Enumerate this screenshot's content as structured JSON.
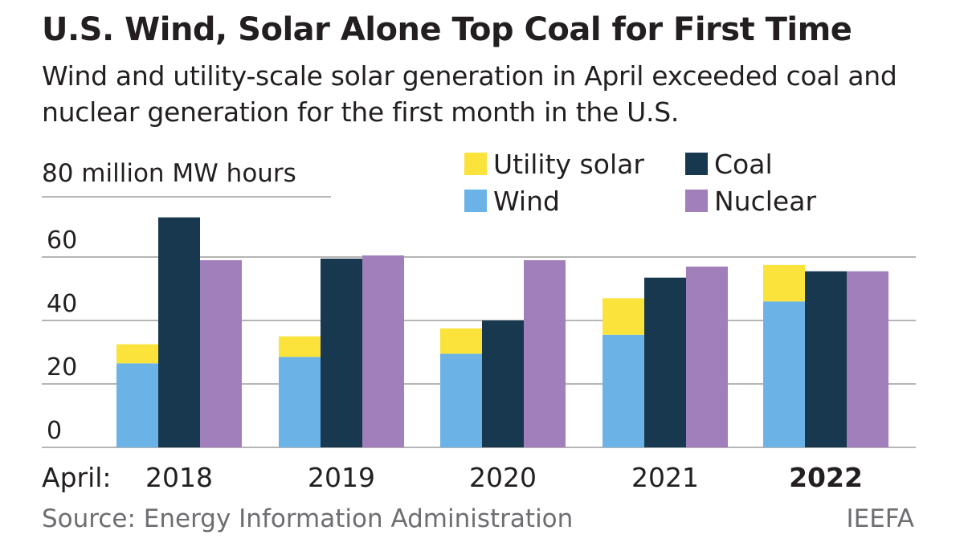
{
  "header": {
    "title": "U.S. Wind, Solar Alone Top Coal for First Time",
    "subtitle": "Wind and utility-scale solar generation in April exceeded coal and nuclear generation for the first month in the U.S."
  },
  "footer": {
    "source": "Source: Energy Information Administration",
    "credit": "IEEFA"
  },
  "colors": {
    "solar": "#fbe33b",
    "wind": "#6bb3e6",
    "coal": "#17384e",
    "nuclear": "#a07fba",
    "grid": "#b5b5b5"
  },
  "chart_data": {
    "type": "bar",
    "stacked_first_group": true,
    "x_prefix": "April:",
    "categories": [
      "2018",
      "2019",
      "2020",
      "2021",
      "2022"
    ],
    "highlight_category": "2022",
    "y_unit_label": "80 million MW hours",
    "yticks": [
      0,
      20,
      40,
      60
    ],
    "ylim": [
      0,
      80
    ],
    "grid": true,
    "legend_position": "top-right",
    "series": [
      {
        "name": "Wind",
        "key": "wind",
        "stack": "renewables",
        "values": [
          26.5,
          28.5,
          29.5,
          35.5,
          46
        ]
      },
      {
        "name": "Utility solar",
        "key": "solar",
        "stack": "renewables",
        "values": [
          6,
          6.5,
          8,
          11.5,
          11.5
        ]
      },
      {
        "name": "Coal",
        "key": "coal",
        "stack": "coal",
        "values": [
          72.5,
          59.5,
          40,
          53.5,
          55.5
        ]
      },
      {
        "name": "Nuclear",
        "key": "nuclear",
        "stack": "nuclear",
        "values": [
          59,
          60.5,
          59,
          57,
          55.5
        ]
      }
    ],
    "legend": [
      {
        "label": "Utility solar",
        "key": "solar"
      },
      {
        "label": "Coal",
        "key": "coal"
      },
      {
        "label": "Wind",
        "key": "wind"
      },
      {
        "label": "Nuclear",
        "key": "nuclear"
      }
    ]
  }
}
